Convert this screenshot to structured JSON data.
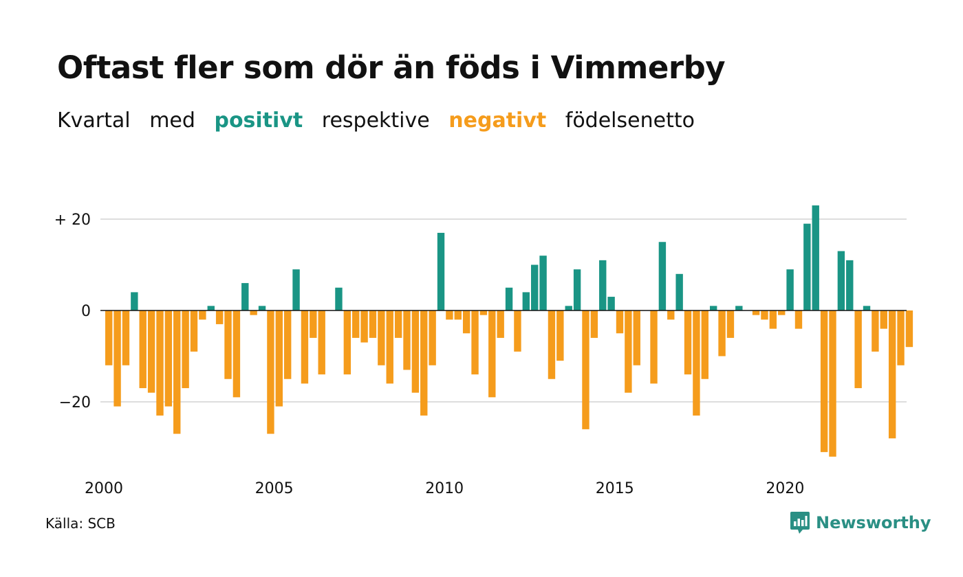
{
  "title": "Oftast fler som dör än föds i Vimmerby",
  "subtitle": {
    "part1": "Kvartal",
    "part2": "med",
    "positive": "positivt",
    "part3": "respektive",
    "negative": "negativt",
    "part4": "födelsenetto"
  },
  "source": "Källa: SCB",
  "brand": "Newsworthy",
  "colors": {
    "positive": "#1a9585",
    "negative": "#f59c1c",
    "grid": "#dddddd",
    "zero_line": "#111111"
  },
  "chart_data": {
    "type": "bar",
    "x_start": "2000 Q1",
    "x_tick_labels": [
      "2000",
      "2005",
      "2010",
      "2015",
      "2020"
    ],
    "y_tick_labels": [
      "+ 20",
      "0",
      "−20"
    ],
    "y_ticks": [
      20,
      0,
      -20
    ],
    "ylim": [
      -33,
      24
    ],
    "grid": true,
    "values": [
      -12,
      -21,
      -12,
      4,
      -17,
      -18,
      -23,
      -21,
      -27,
      -17,
      -9,
      -2,
      1,
      -3,
      -15,
      -19,
      6,
      -1,
      1,
      -27,
      -21,
      -15,
      9,
      -16,
      -6,
      -14,
      0,
      5,
      -14,
      -6,
      -7,
      -6,
      -12,
      -16,
      -6,
      -13,
      -18,
      -23,
      -12,
      17,
      -2,
      -2,
      -5,
      -14,
      -1,
      -19,
      -6,
      5,
      -9,
      4,
      10,
      12,
      -15,
      -11,
      1,
      9,
      -26,
      -6,
      11,
      3,
      -5,
      -18,
      -12,
      0,
      -16,
      15,
      -2,
      8,
      -14,
      -23,
      -15,
      1,
      -10,
      -6,
      1,
      0,
      -1,
      -2,
      -4,
      -1,
      9,
      -4,
      19,
      23,
      -31,
      -32,
      13,
      11,
      -17,
      1,
      -9,
      -4,
      -28,
      -12,
      -8
    ]
  }
}
